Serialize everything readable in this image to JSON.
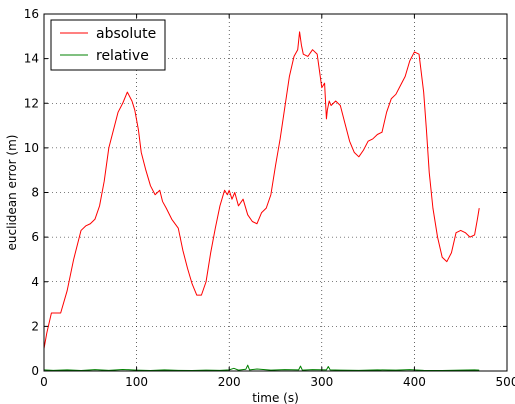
{
  "chart_data": {
    "type": "line",
    "title": "",
    "xlabel": "time (s)",
    "ylabel": "euclidean error (m)",
    "xlim": [
      0,
      500
    ],
    "ylim": [
      0,
      16
    ],
    "xticks": [
      0,
      100,
      200,
      300,
      400,
      500
    ],
    "yticks": [
      0,
      2,
      4,
      6,
      8,
      10,
      12,
      14,
      16
    ],
    "xtick_labels": [
      "0",
      "100",
      "200",
      "300",
      "400",
      "500"
    ],
    "ytick_labels": [
      "0",
      "2",
      "4",
      "6",
      "8",
      "10",
      "12",
      "14",
      "16"
    ],
    "grid": true,
    "legend_position": "top-left",
    "series": [
      {
        "name": "absolute",
        "color": "#ff0000",
        "x": [
          0,
          3,
          8,
          12,
          18,
          25,
          32,
          40,
          45,
          50,
          55,
          60,
          65,
          70,
          75,
          80,
          85,
          90,
          95,
          98,
          102,
          105,
          110,
          115,
          120,
          125,
          128,
          132,
          138,
          145,
          150,
          155,
          160,
          165,
          170,
          175,
          180,
          185,
          190,
          195,
          198,
          200,
          203,
          206,
          210,
          215,
          220,
          225,
          230,
          235,
          240,
          245,
          250,
          255,
          260,
          265,
          270,
          274,
          276,
          278,
          280,
          285,
          290,
          295,
          300,
          303,
          305,
          306,
          308,
          310,
          315,
          320,
          325,
          330,
          335,
          340,
          345,
          350,
          355,
          360,
          365,
          370,
          375,
          380,
          385,
          390,
          395,
          400,
          405,
          410,
          413,
          416,
          420,
          425,
          430,
          435,
          440,
          445,
          450,
          455,
          460,
          465,
          468,
          470
        ],
        "y": [
          1.0,
          1.7,
          2.6,
          2.6,
          2.6,
          3.6,
          5.0,
          6.3,
          6.5,
          6.6,
          6.8,
          7.4,
          8.5,
          10.0,
          10.8,
          11.6,
          12.0,
          12.5,
          12.1,
          11.7,
          10.8,
          9.8,
          9.0,
          8.3,
          7.9,
          8.1,
          7.6,
          7.3,
          6.8,
          6.4,
          5.4,
          4.6,
          3.9,
          3.4,
          3.4,
          4.0,
          5.3,
          6.4,
          7.4,
          8.1,
          7.9,
          8.1,
          7.7,
          8.0,
          7.4,
          7.7,
          7.0,
          6.7,
          6.6,
          7.1,
          7.3,
          7.9,
          9.2,
          10.4,
          11.8,
          13.2,
          14.1,
          14.4,
          15.2,
          14.6,
          14.2,
          14.1,
          14.4,
          14.2,
          12.7,
          12.9,
          11.3,
          11.7,
          12.1,
          11.9,
          12.1,
          11.9,
          11.1,
          10.3,
          9.8,
          9.6,
          9.9,
          10.3,
          10.4,
          10.6,
          10.7,
          11.6,
          12.2,
          12.4,
          12.8,
          13.2,
          13.9,
          14.3,
          14.2,
          12.5,
          10.8,
          8.9,
          7.3,
          6.0,
          5.1,
          4.9,
          5.3,
          6.2,
          6.3,
          6.2,
          6.0,
          6.1,
          6.8,
          7.3
        ]
      },
      {
        "name": "relative",
        "color": "#008000",
        "x": [
          0,
          10,
          25,
          40,
          55,
          70,
          85,
          100,
          115,
          130,
          145,
          160,
          175,
          190,
          200,
          205,
          210,
          218,
          220,
          222,
          230,
          245,
          260,
          275,
          277,
          279,
          290,
          305,
          307,
          309,
          320,
          340,
          360,
          380,
          395,
          410,
          430,
          450,
          465,
          470
        ],
        "y": [
          0.05,
          0.03,
          0.05,
          0.02,
          0.06,
          0.03,
          0.07,
          0.04,
          0.02,
          0.05,
          0.03,
          0.02,
          0.04,
          0.03,
          0.05,
          0.12,
          0.04,
          0.08,
          0.26,
          0.05,
          0.09,
          0.04,
          0.06,
          0.05,
          0.22,
          0.04,
          0.06,
          0.05,
          0.2,
          0.05,
          0.04,
          0.03,
          0.05,
          0.04,
          0.06,
          0.03,
          0.02,
          0.04,
          0.05,
          0.04
        ]
      }
    ]
  }
}
